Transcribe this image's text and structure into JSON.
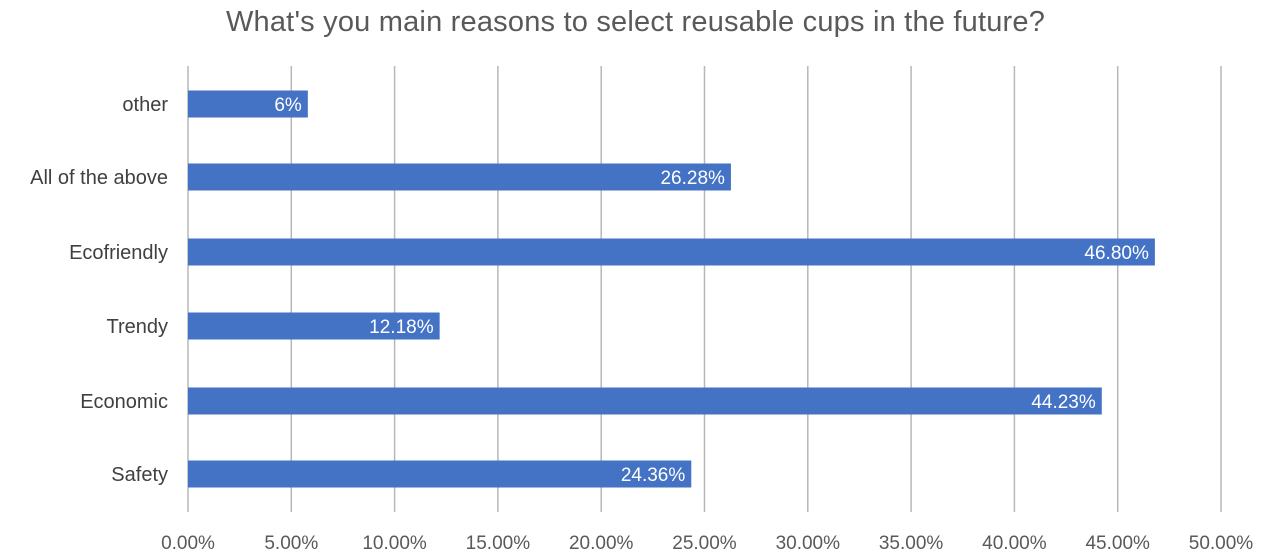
{
  "chart_data": {
    "type": "bar",
    "orientation": "horizontal",
    "title": "What's you main reasons to select reusable cups in the future?",
    "xlabel": "",
    "ylabel": "",
    "categories": [
      "other",
      "All of the above",
      "Ecofriendly",
      "Trendy",
      "Economic",
      "Safety"
    ],
    "values": [
      5.8,
      26.28,
      46.8,
      12.18,
      44.23,
      24.36
    ],
    "data_labels": [
      "6%",
      "26.28%",
      "46.80%",
      "12.18%",
      "44.23%",
      "24.36%"
    ],
    "xlim": [
      0,
      50
    ],
    "x_ticks": [
      0,
      5,
      10,
      15,
      20,
      25,
      30,
      35,
      40,
      45,
      50
    ],
    "x_tick_labels": [
      "0.00%",
      "5.00%",
      "10.00%",
      "15.00%",
      "20.00%",
      "25.00%",
      "30.00%",
      "35.00%",
      "40.00%",
      "45.00%",
      "50.00%"
    ],
    "grid": true,
    "legend": "none",
    "bar_color": "#4472c4"
  }
}
